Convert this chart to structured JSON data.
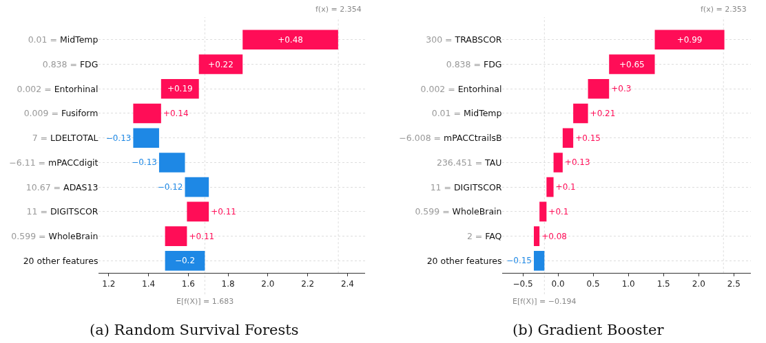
{
  "chart_data": [
    {
      "type": "bar",
      "orientation": "horizontal",
      "title": "(a) Random Survival Forests",
      "categories": [
        "0.01 = MidTemp",
        "0.838 = FDG",
        "0.002 = Entorhinal",
        "0.009 = Fusiform",
        "7 = LDELTOTAL",
        "−6.11 = mPACCdigit",
        "10.67 = ADAS13",
        "11 = DIGITSCOR",
        "0.599 = WholeBrain",
        "20 other features"
      ],
      "values": [
        0.48,
        0.22,
        0.19,
        0.14,
        -0.13,
        -0.13,
        -0.12,
        0.11,
        0.11,
        -0.2
      ],
      "base": [
        1.873,
        1.653,
        1.463,
        1.323,
        1.453,
        1.583,
        1.703,
        1.593,
        1.483,
        1.683
      ],
      "colors": [
        "#ff0d57",
        "#ff0d57",
        "#ff0d57",
        "#ff0d57",
        "#1e88e5",
        "#1e88e5",
        "#1e88e5",
        "#ff0d57",
        "#ff0d57",
        "#1e88e5"
      ],
      "value_labels": [
        "+0.48",
        "+0.22",
        "+0.19",
        "+0.14",
        "−0.13",
        "−0.13",
        "−0.12",
        "+0.11",
        "+0.11",
        "−0.2"
      ],
      "xlim": [
        1.15,
        2.49
      ],
      "xticks": [
        {
          "value": 1.2,
          "label": "1.2"
        },
        {
          "value": 1.4,
          "label": "1.4"
        },
        {
          "value": 1.6,
          "label": "1.6"
        },
        {
          "value": 1.8,
          "label": "1.8"
        },
        {
          "value": 2.0,
          "label": "2.0"
        },
        {
          "value": 2.2,
          "label": "2.2"
        },
        {
          "value": 2.4,
          "label": "2.4"
        }
      ],
      "grid": "y",
      "ref_lines": [
        {
          "axis": "x",
          "value": 2.354,
          "label": "f(x) = 2.354",
          "color": "#dddddd",
          "line_style": "dotted"
        },
        {
          "axis": "x",
          "value": 1.683,
          "label": "E[f(X)] = 1.683",
          "color": "#dddddd",
          "line_style": "dotted"
        }
      ]
    },
    {
      "type": "bar",
      "orientation": "horizontal",
      "title": "(b) Gradient Booster",
      "categories": [
        "300 = TRABSCOR",
        "0.838 = FDG",
        "0.002 = Entorhinal",
        "0.01 = MidTemp",
        "−6.008 = mPACCtrailsB",
        "236.451 = TAU",
        "11 = DIGITSCOR",
        "0.599 = WholeBrain",
        "2 = FAQ",
        "20 other features"
      ],
      "values": [
        0.99,
        0.65,
        0.3,
        0.21,
        0.15,
        0.13,
        0.1,
        0.1,
        0.08,
        -0.15
      ],
      "base": [
        1.376,
        0.726,
        0.426,
        0.216,
        0.066,
        -0.064,
        -0.164,
        -0.264,
        -0.344,
        -0.194
      ],
      "colors": [
        "#ff0d57",
        "#ff0d57",
        "#ff0d57",
        "#ff0d57",
        "#ff0d57",
        "#ff0d57",
        "#ff0d57",
        "#ff0d57",
        "#ff0d57",
        "#1e88e5"
      ],
      "value_labels": [
        "+0.99",
        "+0.65",
        "+0.3",
        "+0.21",
        "+0.15",
        "+0.13",
        "+0.1",
        "+0.1",
        "+0.08",
        "−0.15"
      ],
      "xlim": [
        -0.79,
        2.74
      ],
      "xticks": [
        {
          "value": -0.5,
          "label": "−0.5"
        },
        {
          "value": 0.0,
          "label": "0.0"
        },
        {
          "value": 0.5,
          "label": "0.5"
        },
        {
          "value": 1.0,
          "label": "1.0"
        },
        {
          "value": 1.5,
          "label": "1.5"
        },
        {
          "value": 2.0,
          "label": "2.0"
        },
        {
          "value": 2.5,
          "label": "2.5"
        }
      ],
      "grid": "y",
      "ref_lines": [
        {
          "axis": "x",
          "value": 2.353,
          "label": "f(x) = 2.353",
          "color": "#dddddd",
          "line_style": "dotted"
        },
        {
          "axis": "x",
          "value": -0.194,
          "label": "E[f(X)] = −0.194",
          "color": "#dddddd",
          "line_style": "dotted"
        }
      ]
    }
  ]
}
